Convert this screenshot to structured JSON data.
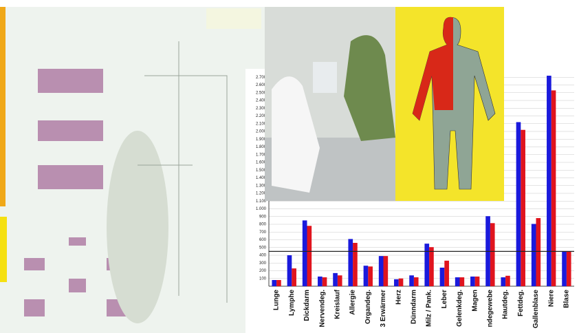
{
  "chart_data": {
    "type": "bar",
    "categories": [
      "Lunge",
      "Lymphe",
      "Dickdarm",
      "Nervendeg.",
      "Kreislauf",
      "Allergie",
      "Organdeg.",
      "3 Erwärmer",
      "Herz",
      "Dünndarm",
      "Milz / Pank.",
      "Leber",
      "Gelenkdeg.",
      "Magen",
      "ndegewebe",
      "Hautdeg.",
      "Fettdeg.",
      "Gallenblase",
      "Niere",
      "Blase"
    ],
    "series": [
      {
        "color": "#1a1adc",
        "values": [
          80,
          400,
          850,
          125,
          170,
          610,
          265,
          390,
          90,
          140,
          550,
          240,
          115,
          125,
          905,
          115,
          2120,
          805,
          2720,
          450
        ]
      },
      {
        "color": "#e0141e",
        "values": [
          80,
          230,
          780,
          115,
          140,
          560,
          255,
          390,
          100,
          115,
          505,
          330,
          115,
          125,
          815,
          135,
          2020,
          880,
          2530,
          450
        ]
      }
    ],
    "hline": 450,
    "ylim": [
      0,
      2800
    ],
    "yticks": [
      100,
      200,
      300,
      400,
      500,
      600,
      700,
      800,
      900,
      {
        "value": 1000,
        "label": "1.000"
      },
      {
        "value": 1100,
        "label": "1.100"
      },
      {
        "value": 1200,
        "label": "1.200"
      },
      {
        "value": 1300,
        "label": "1.300"
      },
      {
        "value": 1400,
        "label": "1.400"
      },
      {
        "value": 1500,
        "label": "1.500"
      },
      {
        "value": 1600,
        "label": "1.600"
      },
      {
        "value": 1700,
        "label": "1.700"
      },
      {
        "value": 1800,
        "label": "1.800"
      },
      {
        "value": 1900,
        "label": "1.900"
      },
      {
        "value": 2000,
        "label": "2.000"
      },
      {
        "value": 2100,
        "label": "2.100"
      },
      {
        "value": 2200,
        "label": "2.200"
      },
      {
        "value": 2300,
        "label": "2.300"
      },
      {
        "value": 2400,
        "label": "2.400"
      },
      {
        "value": 2500,
        "label": "2.500"
      },
      {
        "value": 2600,
        "label": "2.600"
      },
      {
        "value": 2700,
        "label": "2.700"
      }
    ],
    "grid": true
  }
}
